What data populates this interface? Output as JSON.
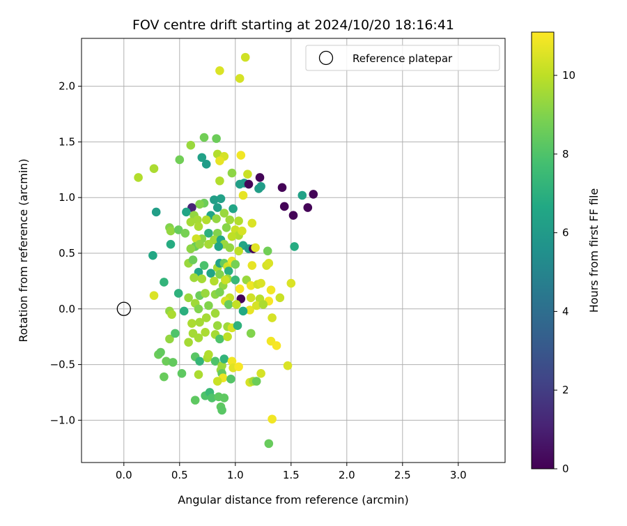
{
  "chart_data": {
    "type": "scatter",
    "title": "FOV centre drift starting at 2024/10/20 18:16:41",
    "xlabel": "Angular distance from reference (arcmin)",
    "ylabel": "Rotation from reference (arcmin)",
    "xlim": [
      -0.38,
      3.42
    ],
    "ylim": [
      -1.38,
      2.43
    ],
    "xticks": [
      0.0,
      0.5,
      1.0,
      1.5,
      2.0,
      2.5,
      3.0
    ],
    "xtick_labels": [
      "0.0",
      "0.5",
      "1.0",
      "1.5",
      "2.0",
      "2.5",
      "3.0"
    ],
    "yticks": [
      -1.0,
      -0.5,
      0.0,
      0.5,
      1.0,
      1.5,
      2.0
    ],
    "ytick_labels": [
      "−1.0",
      "−0.5",
      "0.0",
      "0.5",
      "1.0",
      "1.5",
      "2.0"
    ],
    "grid": true,
    "legend": {
      "placement": "top-right",
      "entries": [
        "Reference platepar"
      ]
    },
    "reference": {
      "x": 0.0,
      "y": 0.0,
      "marker": "open-circle"
    },
    "colorbar": {
      "label": "Hours from first FF file",
      "colormap": "viridis",
      "range": [
        0,
        11.1
      ],
      "ticks": [
        0,
        2,
        4,
        6,
        8,
        10
      ],
      "tick_labels": [
        "0",
        "2",
        "4",
        "6",
        "8",
        "10"
      ]
    },
    "points": [
      [
        1.09,
        2.26,
        10.3
      ],
      [
        0.86,
        2.14,
        10.5
      ],
      [
        1.04,
        2.07,
        10.4
      ],
      [
        0.72,
        1.54,
        8.7
      ],
      [
        0.83,
        1.53,
        8.6
      ],
      [
        0.6,
        1.47,
        9.4
      ],
      [
        0.84,
        1.39,
        9.8
      ],
      [
        0.9,
        1.37,
        10.4
      ],
      [
        1.05,
        1.38,
        10.9
      ],
      [
        0.7,
        1.36,
        6.3
      ],
      [
        0.74,
        1.3,
        6.1
      ],
      [
        0.86,
        1.33,
        10.7
      ],
      [
        0.5,
        1.34,
        8.7
      ],
      [
        0.27,
        1.26,
        9.7
      ],
      [
        0.13,
        1.18,
        9.8
      ],
      [
        0.97,
        1.22,
        9.2
      ],
      [
        1.11,
        1.21,
        10.2
      ],
      [
        1.22,
        1.18,
        0.1
      ],
      [
        0.86,
        1.15,
        9.8
      ],
      [
        1.04,
        1.12,
        6.2
      ],
      [
        1.08,
        1.13,
        6.0
      ],
      [
        1.12,
        1.12,
        0.1
      ],
      [
        1.21,
        1.08,
        6.2
      ],
      [
        1.23,
        1.1,
        6.1
      ],
      [
        1.42,
        1.09,
        0.1
      ],
      [
        1.6,
        1.02,
        6.3
      ],
      [
        1.7,
        1.03,
        0.1
      ],
      [
        1.07,
        1.02,
        10.7
      ],
      [
        0.87,
        0.99,
        6.3
      ],
      [
        0.81,
        0.98,
        6.2
      ],
      [
        0.72,
        0.95,
        8.6
      ],
      [
        0.68,
        0.94,
        9.0
      ],
      [
        0.61,
        0.91,
        1.1
      ],
      [
        0.56,
        0.87,
        6.5
      ],
      [
        0.29,
        0.87,
        6.2
      ],
      [
        0.84,
        0.91,
        6.2
      ],
      [
        1.44,
        0.92,
        0.1
      ],
      [
        1.65,
        0.91,
        0.1
      ],
      [
        1.52,
        0.84,
        0.1
      ],
      [
        0.98,
        0.9,
        6.5
      ],
      [
        0.9,
        0.86,
        9.4
      ],
      [
        0.78,
        0.84,
        6.5
      ],
      [
        0.63,
        0.84,
        9.3
      ],
      [
        0.66,
        0.8,
        9.6
      ],
      [
        0.6,
        0.78,
        9.6
      ],
      [
        0.74,
        0.8,
        9.8
      ],
      [
        0.83,
        0.81,
        9.3
      ],
      [
        0.95,
        0.8,
        9.5
      ],
      [
        1.03,
        0.79,
        9.8
      ],
      [
        1.15,
        0.77,
        10.5
      ],
      [
        0.41,
        0.73,
        9.0
      ],
      [
        0.67,
        0.74,
        9.7
      ],
      [
        0.92,
        0.73,
        9.1
      ],
      [
        1.0,
        0.71,
        10.2
      ],
      [
        0.42,
        0.7,
        9.3
      ],
      [
        0.49,
        0.71,
        8.5
      ],
      [
        0.55,
        0.68,
        8.8
      ],
      [
        0.76,
        0.68,
        7.0
      ],
      [
        0.84,
        0.68,
        9.0
      ],
      [
        1.03,
        0.66,
        9.8
      ],
      [
        1.06,
        0.7,
        10.4
      ],
      [
        0.97,
        0.65,
        10.0
      ],
      [
        0.7,
        0.63,
        9.2
      ],
      [
        0.65,
        0.63,
        10.3
      ],
      [
        0.81,
        0.62,
        9.5
      ],
      [
        0.87,
        0.62,
        6.6
      ],
      [
        0.9,
        0.58,
        9.4
      ],
      [
        1.07,
        0.57,
        6.5
      ],
      [
        1.12,
        0.54,
        6.0
      ],
      [
        0.76,
        0.58,
        9.6
      ],
      [
        0.64,
        0.56,
        8.6
      ],
      [
        0.68,
        0.58,
        9.3
      ],
      [
        0.6,
        0.54,
        9.2
      ],
      [
        0.85,
        0.56,
        6.5
      ],
      [
        0.95,
        0.55,
        9.3
      ],
      [
        1.03,
        0.52,
        10.0
      ],
      [
        1.16,
        0.54,
        0.1
      ],
      [
        1.18,
        0.55,
        10.6
      ],
      [
        1.29,
        0.52,
        8.7
      ],
      [
        1.53,
        0.56,
        6.8
      ],
      [
        0.42,
        0.58,
        6.8
      ],
      [
        0.26,
        0.48,
        6.6
      ],
      [
        0.58,
        0.41,
        9.4
      ],
      [
        0.62,
        0.44,
        8.6
      ],
      [
        0.67,
        0.33,
        6.6
      ],
      [
        0.72,
        0.39,
        7.9
      ],
      [
        0.78,
        0.32,
        6.5
      ],
      [
        0.84,
        0.37,
        9.6
      ],
      [
        0.86,
        0.31,
        9.0
      ],
      [
        0.86,
        0.41,
        6.3
      ],
      [
        0.9,
        0.41,
        8.5
      ],
      [
        0.93,
        0.38,
        10.3
      ],
      [
        0.97,
        0.43,
        10.8
      ],
      [
        1.0,
        0.4,
        8.8
      ],
      [
        1.15,
        0.39,
        10.7
      ],
      [
        1.28,
        0.39,
        10.4
      ],
      [
        1.3,
        0.41,
        10.5
      ],
      [
        0.36,
        0.24,
        7.2
      ],
      [
        0.63,
        0.28,
        9.5
      ],
      [
        0.7,
        0.27,
        9.6
      ],
      [
        0.81,
        0.25,
        9.8
      ],
      [
        0.94,
        0.34,
        7.0
      ],
      [
        0.93,
        0.27,
        9.4
      ],
      [
        0.89,
        0.21,
        9.3
      ],
      [
        0.91,
        0.26,
        10.2
      ],
      [
        1.0,
        0.26,
        7.4
      ],
      [
        1.1,
        0.26,
        9.4
      ],
      [
        1.14,
        0.21,
        10.8
      ],
      [
        1.2,
        0.22,
        10.3
      ],
      [
        1.23,
        0.23,
        10.5
      ],
      [
        1.32,
        0.17,
        10.9
      ],
      [
        1.5,
        0.23,
        10.5
      ],
      [
        0.49,
        0.14,
        7.1
      ],
      [
        0.58,
        0.1,
        9.4
      ],
      [
        0.68,
        0.12,
        8.6
      ],
      [
        0.73,
        0.14,
        9.4
      ],
      [
        0.82,
        0.13,
        9.2
      ],
      [
        0.86,
        0.15,
        8.9
      ],
      [
        0.95,
        0.1,
        10.1
      ],
      [
        1.04,
        0.18,
        11.0
      ],
      [
        1.05,
        0.09,
        0.1
      ],
      [
        1.14,
        0.1,
        10.3
      ],
      [
        1.22,
        0.09,
        9.9
      ],
      [
        1.3,
        0.07,
        11.0
      ],
      [
        1.4,
        0.1,
        10.2
      ],
      [
        0.27,
        0.12,
        10.5
      ],
      [
        0.41,
        -0.02,
        9.3
      ],
      [
        0.43,
        -0.05,
        9.7
      ],
      [
        0.54,
        -0.02,
        7.0
      ],
      [
        0.64,
        0.05,
        9.5
      ],
      [
        0.67,
        -0.0,
        9.0
      ],
      [
        0.76,
        0.03,
        9.0
      ],
      [
        0.82,
        -0.04,
        9.5
      ],
      [
        0.91,
        0.07,
        10.4
      ],
      [
        0.94,
        0.04,
        8.5
      ],
      [
        1.01,
        0.04,
        10.1
      ],
      [
        1.13,
        -0.01,
        10.7
      ],
      [
        1.07,
        -0.02,
        6.7
      ],
      [
        1.19,
        0.03,
        10.4
      ],
      [
        1.25,
        0.04,
        9.7
      ],
      [
        0.61,
        -0.13,
        9.7
      ],
      [
        0.68,
        -0.12,
        9.6
      ],
      [
        0.74,
        -0.08,
        9.6
      ],
      [
        0.84,
        -0.15,
        9.4
      ],
      [
        0.93,
        -0.16,
        9.5
      ],
      [
        0.97,
        -0.17,
        10.4
      ],
      [
        1.02,
        -0.15,
        7.1
      ],
      [
        1.33,
        -0.08,
        10.4
      ],
      [
        0.41,
        -0.27,
        9.3
      ],
      [
        0.46,
        -0.22,
        8.0
      ],
      [
        0.58,
        -0.3,
        9.6
      ],
      [
        0.62,
        -0.22,
        9.6
      ],
      [
        0.67,
        -0.26,
        9.6
      ],
      [
        0.73,
        -0.21,
        9.7
      ],
      [
        0.82,
        -0.23,
        9.6
      ],
      [
        0.86,
        -0.27,
        8.0
      ],
      [
        0.93,
        -0.25,
        10.0
      ],
      [
        1.14,
        -0.22,
        9.0
      ],
      [
        1.32,
        -0.29,
        10.9
      ],
      [
        1.37,
        -0.33,
        11.0
      ],
      [
        0.31,
        -0.41,
        8.6
      ],
      [
        0.33,
        -0.39,
        8.4
      ],
      [
        0.38,
        -0.47,
        8.6
      ],
      [
        0.44,
        -0.48,
        8.4
      ],
      [
        0.64,
        -0.43,
        8.2
      ],
      [
        0.68,
        -0.47,
        7.3
      ],
      [
        0.75,
        -0.44,
        9.7
      ],
      [
        0.76,
        -0.41,
        9.8
      ],
      [
        0.82,
        -0.47,
        8.0
      ],
      [
        0.88,
        -0.51,
        9.5
      ],
      [
        0.9,
        -0.45,
        7.2
      ],
      [
        0.97,
        -0.47,
        10.9
      ],
      [
        0.98,
        -0.53,
        10.6
      ],
      [
        1.03,
        -0.52,
        11.0
      ],
      [
        1.47,
        -0.51,
        10.5
      ],
      [
        0.36,
        -0.61,
        8.5
      ],
      [
        0.52,
        -0.58,
        8.3
      ],
      [
        0.67,
        -0.59,
        9.7
      ],
      [
        0.87,
        -0.55,
        9.4
      ],
      [
        0.88,
        -0.58,
        8.4
      ],
      [
        0.89,
        -0.62,
        10.8
      ],
      [
        0.96,
        -0.63,
        8.1
      ],
      [
        1.13,
        -0.66,
        10.4
      ],
      [
        1.16,
        -0.65,
        9.6
      ],
      [
        1.19,
        -0.65,
        8.6
      ],
      [
        1.23,
        -0.58,
        10.4
      ],
      [
        0.64,
        -0.82,
        8.3
      ],
      [
        0.73,
        -0.78,
        8.0
      ],
      [
        0.77,
        -0.75,
        7.5
      ],
      [
        0.79,
        -0.8,
        8.0
      ],
      [
        0.84,
        -0.65,
        10.2
      ],
      [
        0.85,
        -0.79,
        8.3
      ],
      [
        0.87,
        -0.88,
        8.3
      ],
      [
        0.88,
        -0.91,
        8.2
      ],
      [
        0.9,
        -0.8,
        8.3
      ],
      [
        1.33,
        -0.99,
        10.9
      ],
      [
        1.3,
        -1.21,
        8.5
      ]
    ]
  }
}
